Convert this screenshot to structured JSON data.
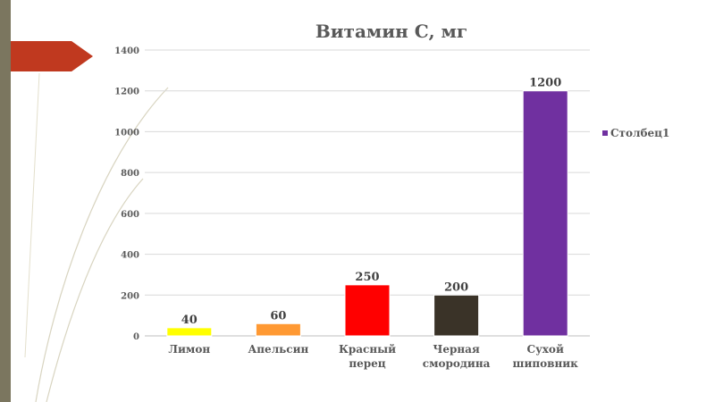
{
  "colors": {
    "gridline": "#d9d9d9",
    "axis": "#bfbfbf",
    "text": "#595959",
    "left_bar": "#7b765f",
    "arrow": "#c0391f",
    "decor_line": "#d8d4c0"
  },
  "chart_data": {
    "type": "bar",
    "title": "Витамин С, мг",
    "xlabel": "",
    "ylabel": "",
    "ylim": [
      0,
      1400
    ],
    "yticks": [
      0,
      200,
      400,
      600,
      800,
      1000,
      1200,
      1400
    ],
    "grid": true,
    "legend_position": "right",
    "categories": [
      [
        "Лимон"
      ],
      [
        "Апельсин"
      ],
      [
        "Красный",
        "перец"
      ],
      [
        "Черная",
        "смородина"
      ],
      [
        "Сухой",
        "шиповник"
      ]
    ],
    "series": [
      {
        "name": "Столбец1",
        "values": [
          40,
          60,
          250,
          200,
          1200
        ],
        "colors": [
          "#ffff00",
          "#ff9933",
          "#ff0000",
          "#3a3328",
          "#7030a0"
        ],
        "legend_color": "#7030a0"
      }
    ]
  }
}
